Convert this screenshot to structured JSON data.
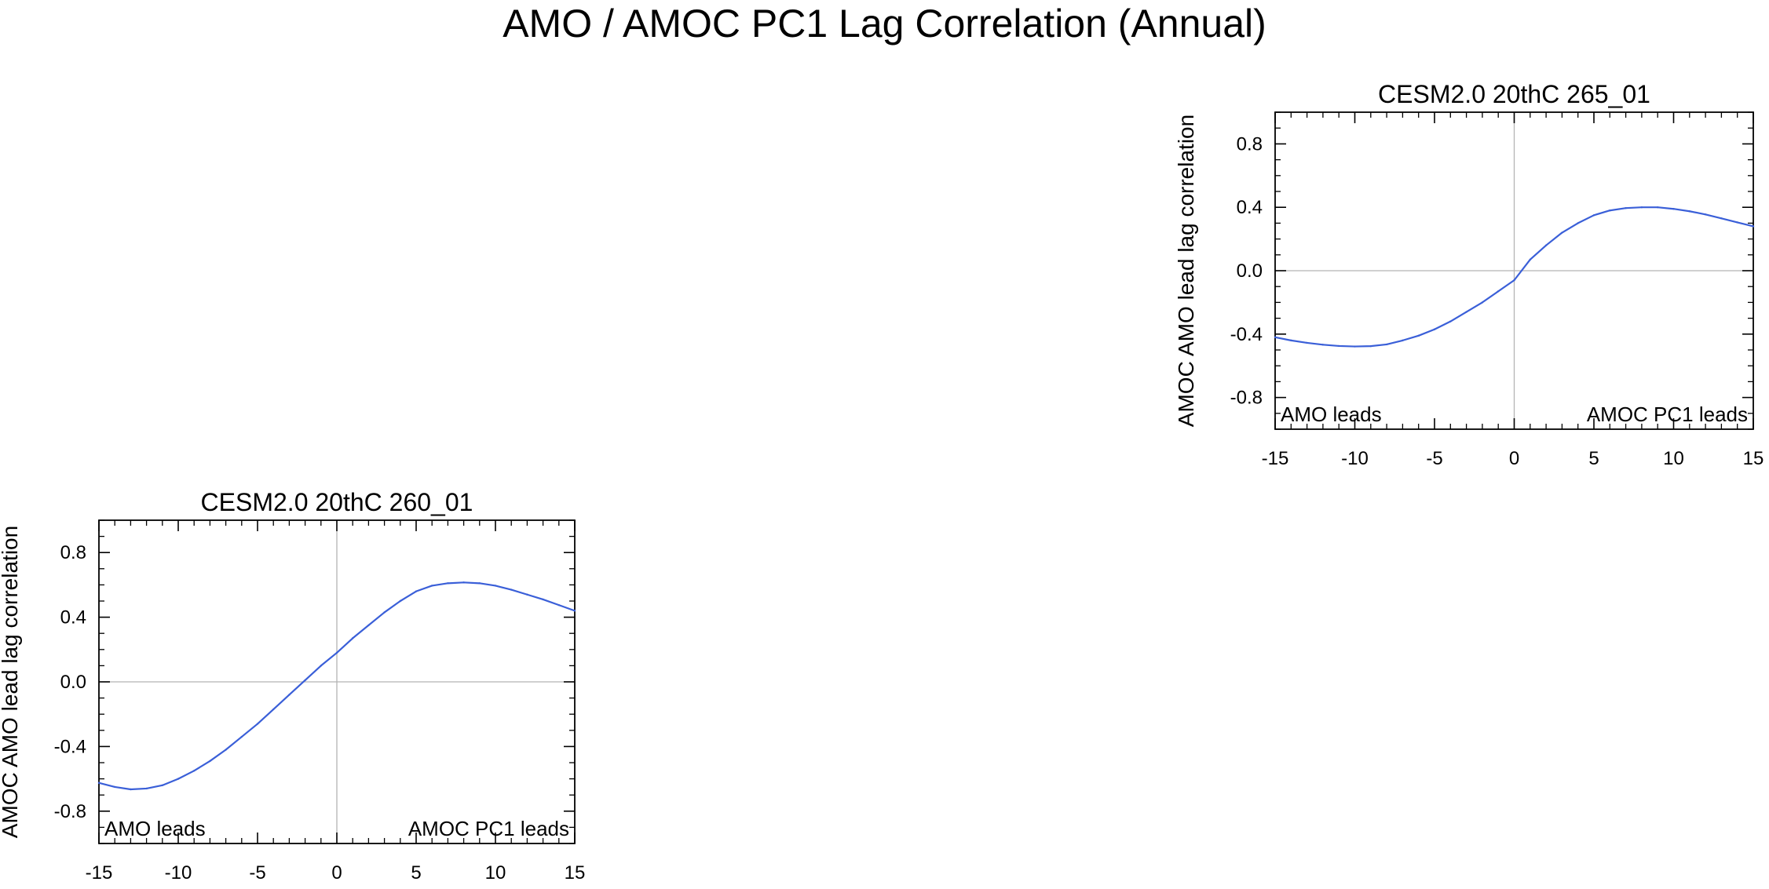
{
  "page_title": "AMO / AMOC PC1 Lag Correlation (Annual)",
  "chart_data": [
    {
      "type": "line",
      "title": "CESM2.0 20thC 265_01",
      "xlabel": "",
      "ylabel": "AMOC AMO lead lag correlation",
      "xlim": [
        -15,
        15
      ],
      "ylim": [
        -1.0,
        1.0
      ],
      "xticks": [
        -15,
        -10,
        -5,
        0,
        5,
        10,
        15
      ],
      "yticks": [
        -0.8,
        -0.4,
        0.0,
        0.4,
        0.8
      ],
      "xtick_labels": [
        "-15",
        "-10",
        "-5",
        "0",
        "5",
        "10",
        "15"
      ],
      "ytick_labels": [
        "-0.8",
        "-0.4",
        "0.0",
        "0.4",
        "0.8"
      ],
      "annotations": {
        "left": "AMO leads",
        "right": "AMOC PC1 leads"
      },
      "zero_lines": true,
      "line_color": "#3a5fd8",
      "series": [
        {
          "name": "lag correlation",
          "x": [
            -15,
            -14,
            -13,
            -12,
            -11,
            -10,
            -9,
            -8,
            -7,
            -6,
            -5,
            -4,
            -3,
            -2,
            -1,
            0,
            1,
            2,
            3,
            4,
            5,
            6,
            7,
            8,
            9,
            10,
            11,
            12,
            13,
            14,
            15
          ],
          "values": [
            -0.42,
            -0.44,
            -0.455,
            -0.467,
            -0.475,
            -0.478,
            -0.476,
            -0.465,
            -0.44,
            -0.41,
            -0.37,
            -0.32,
            -0.26,
            -0.2,
            -0.13,
            -0.06,
            0.07,
            0.16,
            0.24,
            0.3,
            0.35,
            0.38,
            0.395,
            0.4,
            0.4,
            0.39,
            0.375,
            0.355,
            0.33,
            0.305,
            0.28
          ]
        }
      ]
    },
    {
      "type": "line",
      "title": "CESM2.0 20thC 260_01",
      "xlabel": "",
      "ylabel": "AMOC AMO lead lag correlation",
      "xlim": [
        -15,
        15
      ],
      "ylim": [
        -1.0,
        1.0
      ],
      "xticks": [
        -15,
        -10,
        -5,
        0,
        5,
        10,
        15
      ],
      "yticks": [
        -0.8,
        -0.4,
        0.0,
        0.4,
        0.8
      ],
      "xtick_labels": [
        "-15",
        "-10",
        "-5",
        "0",
        "5",
        "10",
        "15"
      ],
      "ytick_labels": [
        "-0.8",
        "-0.4",
        "0.0",
        "0.4",
        "0.8"
      ],
      "annotations": {
        "left": "AMO leads",
        "right": "AMOC PC1 leads"
      },
      "zero_lines": true,
      "line_color": "#3a5fd8",
      "series": [
        {
          "name": "lag correlation",
          "x": [
            -15,
            -14,
            -13,
            -12,
            -11,
            -10,
            -9,
            -8,
            -7,
            -6,
            -5,
            -4,
            -3,
            -2,
            -1,
            0,
            1,
            2,
            3,
            4,
            5,
            6,
            7,
            8,
            9,
            10,
            11,
            12,
            13,
            14,
            15
          ],
          "values": [
            -0.625,
            -0.65,
            -0.665,
            -0.66,
            -0.64,
            -0.6,
            -0.55,
            -0.49,
            -0.42,
            -0.34,
            -0.26,
            -0.17,
            -0.08,
            0.01,
            0.1,
            0.18,
            0.27,
            0.35,
            0.43,
            0.5,
            0.56,
            0.595,
            0.61,
            0.615,
            0.61,
            0.595,
            0.57,
            0.54,
            0.51,
            0.475,
            0.44
          ]
        }
      ]
    }
  ]
}
